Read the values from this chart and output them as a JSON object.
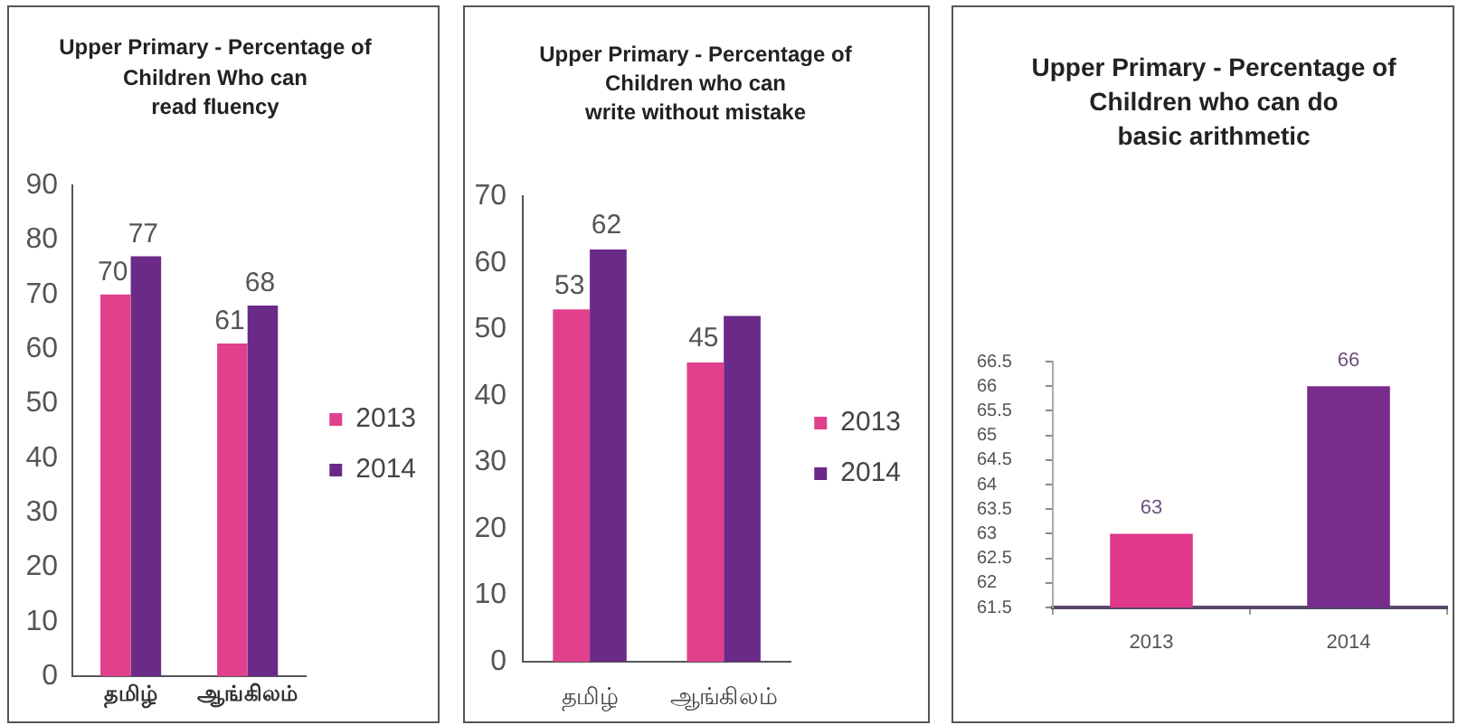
{
  "chart_data": [
    {
      "type": "bar",
      "title": "Upper Primary - Percentage of\nChildren Who can\nread fluency",
      "categories": [
        "தமிழ்",
        "ஆங்கிலம்"
      ],
      "series": [
        {
          "name": "2013",
          "color": "#e0408c",
          "values": [
            70,
            61
          ]
        },
        {
          "name": "2014",
          "color": "#6c2a88",
          "values": [
            77,
            68
          ]
        }
      ],
      "ylim": [
        0,
        90
      ],
      "yticks": [
        0,
        10,
        20,
        30,
        40,
        50,
        60,
        70,
        80,
        90
      ],
      "legend": "right",
      "data_labels": true
    },
    {
      "type": "bar",
      "title": "Upper Primary - Percentage of\nChildren who can\nwrite without mistake",
      "categories": [
        "தமிழ்",
        "ஆங்கிலம்"
      ],
      "series": [
        {
          "name": "2013",
          "color": "#e0408c",
          "values": [
            53,
            45
          ],
          "value_labels": [
            "53",
            "45"
          ]
        },
        {
          "name": "2014",
          "color": "#6c2a88",
          "values": [
            62,
            52
          ],
          "value_labels": [
            "62",
            null
          ]
        }
      ],
      "ylim": [
        0,
        70
      ],
      "yticks": [
        0,
        10,
        20,
        30,
        40,
        50,
        60,
        70
      ],
      "legend": "right"
    },
    {
      "type": "bar",
      "title": "Upper Primary - Percentage of\nChildren who can do\nbasic arithmetic",
      "categories": [
        "2013",
        "2014"
      ],
      "values": [
        63,
        66
      ],
      "colors": [
        "#e0388a",
        "#782c8c"
      ],
      "ylim": [
        61.5,
        66.5
      ],
      "yticks": [
        61.5,
        62,
        62.5,
        63,
        63.5,
        64,
        64.5,
        65,
        65.5,
        66,
        66.5
      ],
      "data_labels": true
    }
  ]
}
